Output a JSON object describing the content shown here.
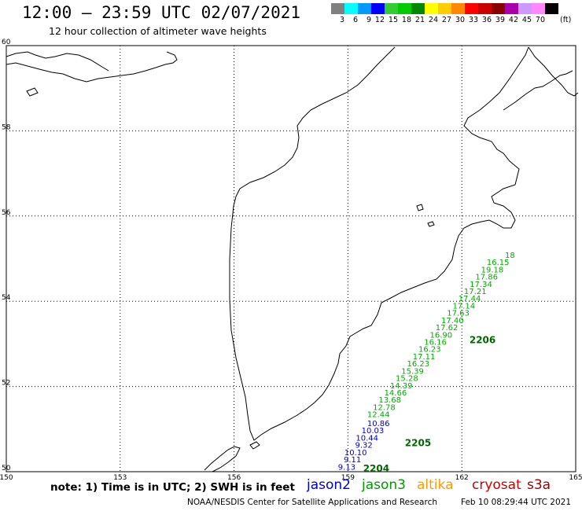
{
  "header": {
    "title": "12:00 – 23:59 UTC 02/07/2021",
    "subtitle": "12 hour collection of altimeter wave heights"
  },
  "color_scale": {
    "unit": "(ft)",
    "bins": [
      {
        "label": "3",
        "color": "#808080"
      },
      {
        "label": "6",
        "color": "#00ffff"
      },
      {
        "label": "9",
        "color": "#0099ff"
      },
      {
        "label": "12",
        "color": "#0000ff"
      },
      {
        "label": "15",
        "color": "#33cc33"
      },
      {
        "label": "18",
        "color": "#00cc00"
      },
      {
        "label": "21",
        "color": "#008800"
      },
      {
        "label": "24",
        "color": "#ffff00"
      },
      {
        "label": "27",
        "color": "#ffcc00"
      },
      {
        "label": "30",
        "color": "#ff8800"
      },
      {
        "label": "33",
        "color": "#ff0000"
      },
      {
        "label": "36",
        "color": "#cc0000"
      },
      {
        "label": "39",
        "color": "#880000"
      },
      {
        "label": "42",
        "color": "#aa00aa"
      },
      {
        "label": "45",
        "color": "#cc99ff"
      },
      {
        "label": "70",
        "color": "#ff88ff"
      },
      {
        "label": "",
        "color": "#000000"
      }
    ]
  },
  "map": {
    "lon_ticks": [
      "150",
      "153",
      "156",
      "159",
      "162",
      "165"
    ],
    "lat_ticks": [
      "60",
      "58",
      "56",
      "54",
      "52",
      "50"
    ],
    "extent": {
      "lon": [
        150,
        165
      ],
      "lat": [
        50,
        60
      ]
    },
    "grid": "dotted"
  },
  "tracks": [
    {
      "satellite": "jason2",
      "color": "#0000cc",
      "pass_label": "2204",
      "pass_color": "#006600",
      "readings": [
        {
          "lon": 159.2,
          "lat": 50.05,
          "v": "9.13"
        },
        {
          "lon": 159.35,
          "lat": 50.22,
          "v": "9.11"
        },
        {
          "lon": 159.5,
          "lat": 50.39,
          "v": "10.10"
        },
        {
          "lon": 159.65,
          "lat": 50.56,
          "v": "9.32"
        },
        {
          "lon": 159.8,
          "lat": 50.73,
          "v": "10.44"
        },
        {
          "lon": 159.95,
          "lat": 50.9,
          "v": "10.03"
        },
        {
          "lon": 160.1,
          "lat": 51.07,
          "v": "10.86"
        }
      ]
    },
    {
      "satellite": "jason3",
      "color": "#00aa00",
      "pass_label": "2205",
      "pass_color": "#006600",
      "readings": [
        {
          "lon": 160.1,
          "lat": 51.28,
          "v": "12.44"
        },
        {
          "lon": 160.25,
          "lat": 51.45,
          "v": "12.78"
        },
        {
          "lon": 160.4,
          "lat": 51.62,
          "v": "13.68"
        },
        {
          "lon": 160.55,
          "lat": 51.79,
          "v": "14.66"
        },
        {
          "lon": 160.7,
          "lat": 51.96,
          "v": "14.39"
        },
        {
          "lon": 160.85,
          "lat": 52.13,
          "v": "15.28"
        },
        {
          "lon": 161.0,
          "lat": 52.3,
          "v": "15.39"
        },
        {
          "lon": 161.15,
          "lat": 52.47,
          "v": "16.23"
        },
        {
          "lon": 161.3,
          "lat": 52.64,
          "v": "17.11"
        },
        {
          "lon": 161.45,
          "lat": 52.81,
          "v": "16.23"
        },
        {
          "lon": 161.6,
          "lat": 52.98,
          "v": "16.16"
        },
        {
          "lon": 161.75,
          "lat": 53.15,
          "v": "16.90"
        },
        {
          "lon": 161.9,
          "lat": 53.32,
          "v": "17.62"
        }
      ]
    },
    {
      "satellite": "jason3",
      "color": "#00aa00",
      "pass_label": "2206",
      "pass_color": "#006600",
      "readings": [
        {
          "lon": 162.05,
          "lat": 53.49,
          "v": "17.40"
        },
        {
          "lon": 162.2,
          "lat": 53.66,
          "v": "17.63"
        },
        {
          "lon": 162.35,
          "lat": 53.83,
          "v": "17.14"
        },
        {
          "lon": 162.5,
          "lat": 54.0,
          "v": "17.44"
        },
        {
          "lon": 162.65,
          "lat": 54.17,
          "v": "17.21"
        },
        {
          "lon": 162.8,
          "lat": 54.34,
          "v": "17.34"
        },
        {
          "lon": 162.95,
          "lat": 54.51,
          "v": "17.86"
        },
        {
          "lon": 163.1,
          "lat": 54.68,
          "v": "19.18"
        },
        {
          "lon": 163.25,
          "lat": 54.85,
          "v": "16.15"
        },
        {
          "lon": 163.4,
          "lat": 55.02,
          "v": "18"
        }
      ]
    }
  ],
  "footer": {
    "note": "note: 1) Time is in UTC; 2) SWH is in feet",
    "legend": [
      {
        "name": "jason2",
        "color": "#0000cc"
      },
      {
        "name": "jason3",
        "color": "#009900"
      },
      {
        "name": "altika",
        "color": "#ff9900"
      },
      {
        "name": "cryosat",
        "color": "#cc0000"
      },
      {
        "name": "s3a",
        "color": "#990000"
      }
    ],
    "credit": "NOAA/NESDIS Center for Satellite Applications and Research",
    "timestamp": "Feb 10 08:29:44 UTC 2021"
  }
}
